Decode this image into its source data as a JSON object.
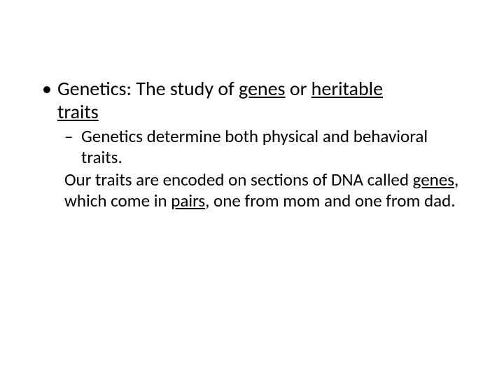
{
  "text_color": "#000000",
  "background_color": "#ffffff",
  "font_family": "Calibri",
  "bullets": {
    "level1_glyph": "•",
    "level2_glyph": "–"
  },
  "l1": {
    "prefix": "Genetics:  The study of ",
    "u1": "genes",
    "mid1": " or ",
    "u2": "heritable",
    "line2_u": "traits"
  },
  "l2": {
    "text": "Genetics determine both physical and behavioral traits."
  },
  "cont": {
    "p1": "Our traits are encoded on sections of DNA called ",
    "u1": "genes",
    "p2": ", which come in ",
    "u2": "pairs",
    "p3": ", one from mom and one from dad."
  }
}
